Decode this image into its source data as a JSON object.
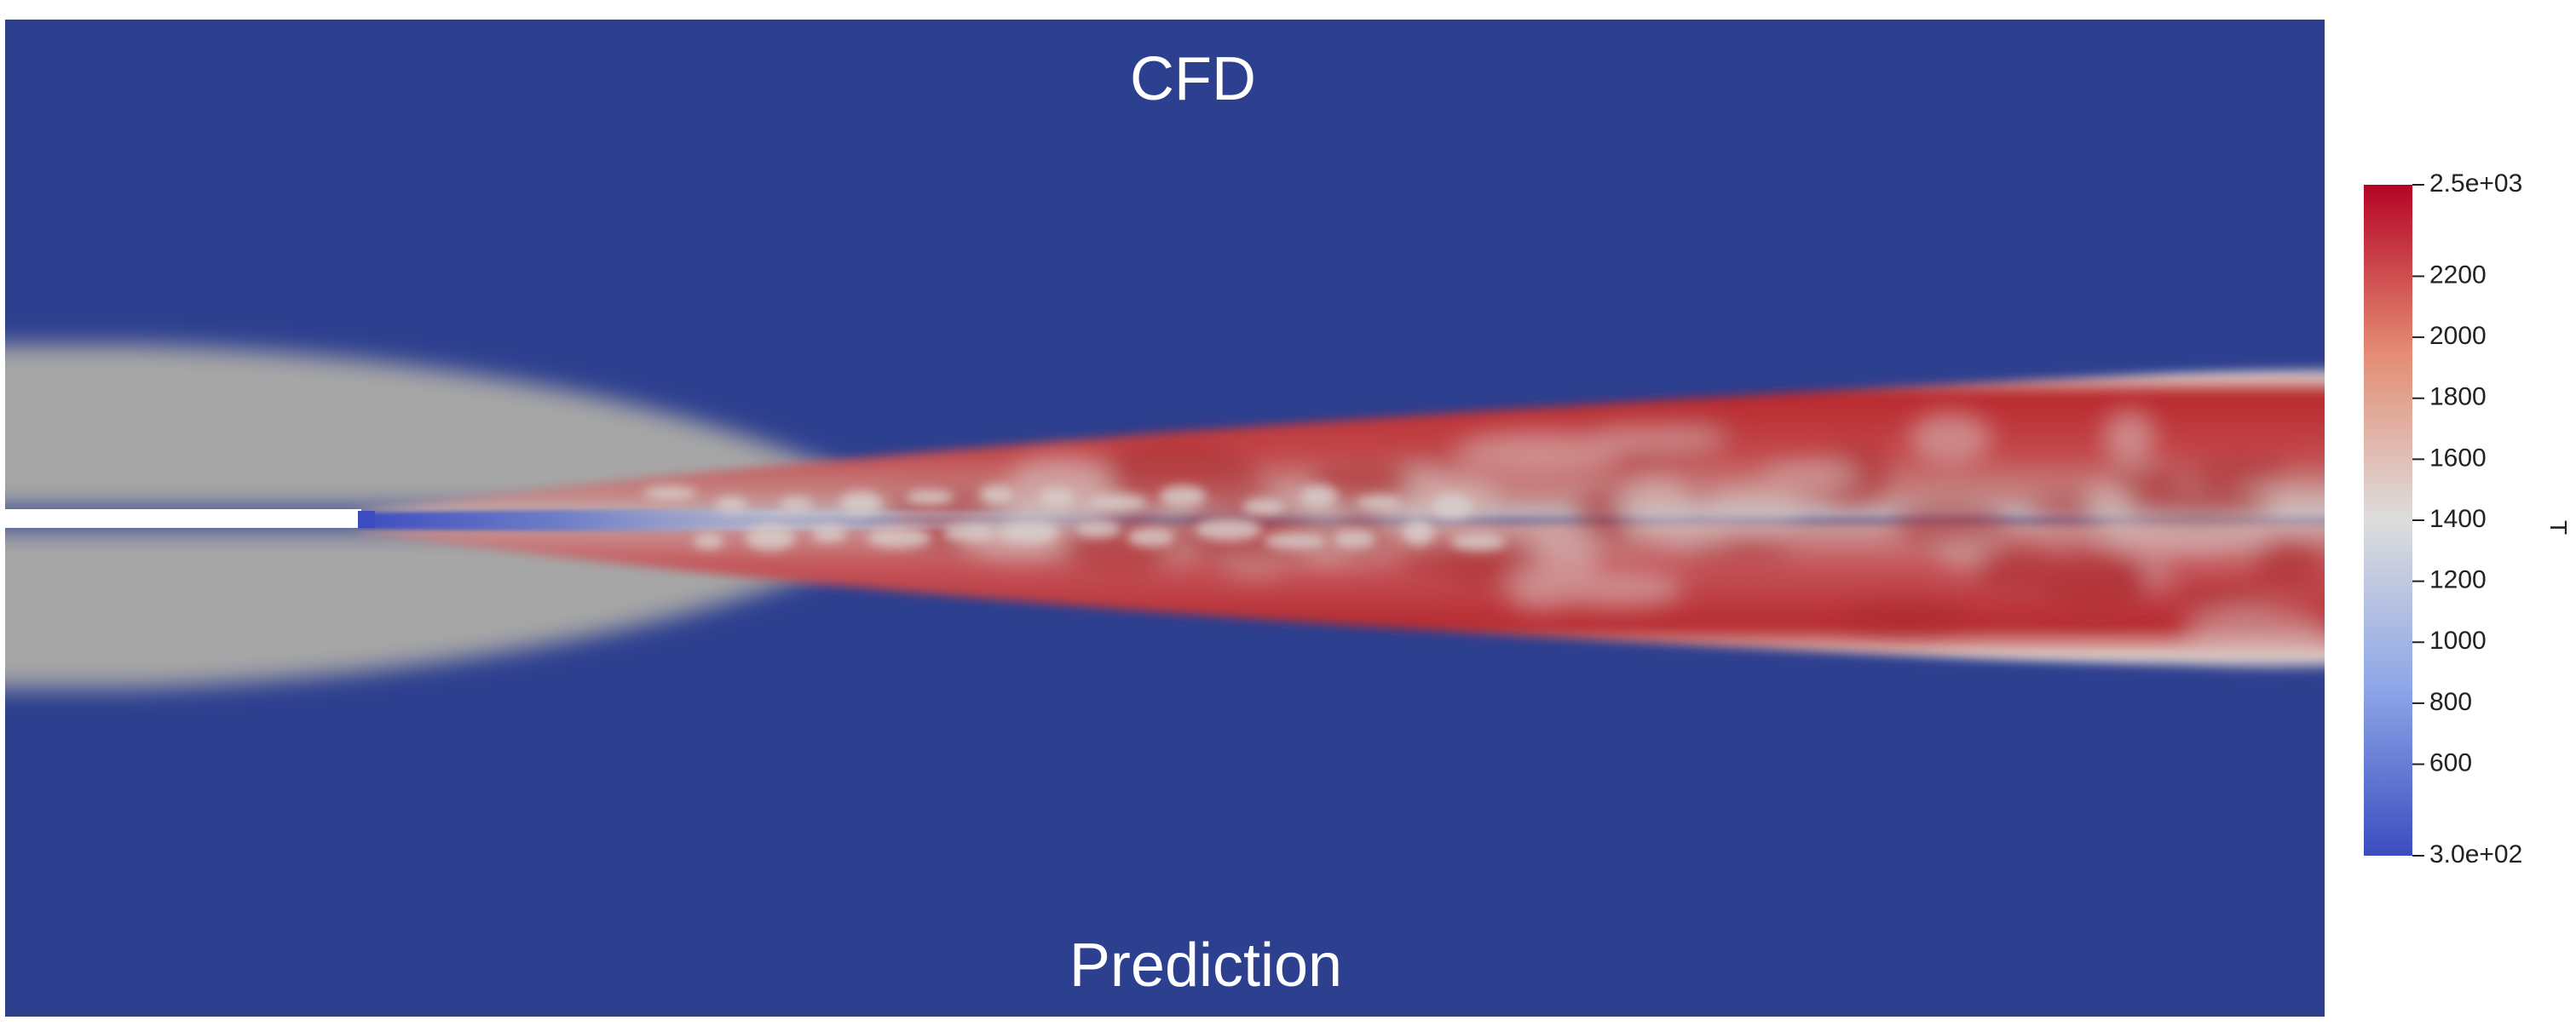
{
  "panels": {
    "top_label": "CFD",
    "bottom_label": "Prediction"
  },
  "field": {
    "variable": "T",
    "background_color": "#2d3f8f",
    "coflow_color": "#a6a6a6",
    "hot_color": "#b9282d",
    "jet_core_color": "#3b4cc0",
    "wall_color": "#ffffff"
  },
  "colorbar": {
    "title": "T",
    "min": 300,
    "max": 2500,
    "min_label": "3.0e+02",
    "max_label": "2.5e+03",
    "ticks": [
      {
        "value": 600,
        "label": "600"
      },
      {
        "value": 800,
        "label": "800"
      },
      {
        "value": 1000,
        "label": "1000"
      },
      {
        "value": 1200,
        "label": "1200"
      },
      {
        "value": 1400,
        "label": "1400"
      },
      {
        "value": 1600,
        "label": "1600"
      },
      {
        "value": 1800,
        "label": "1800"
      },
      {
        "value": 2000,
        "label": "2000"
      },
      {
        "value": 2200,
        "label": "2200"
      }
    ],
    "colormap": [
      "#3b4cc0",
      "#dddddd",
      "#b40426"
    ]
  }
}
